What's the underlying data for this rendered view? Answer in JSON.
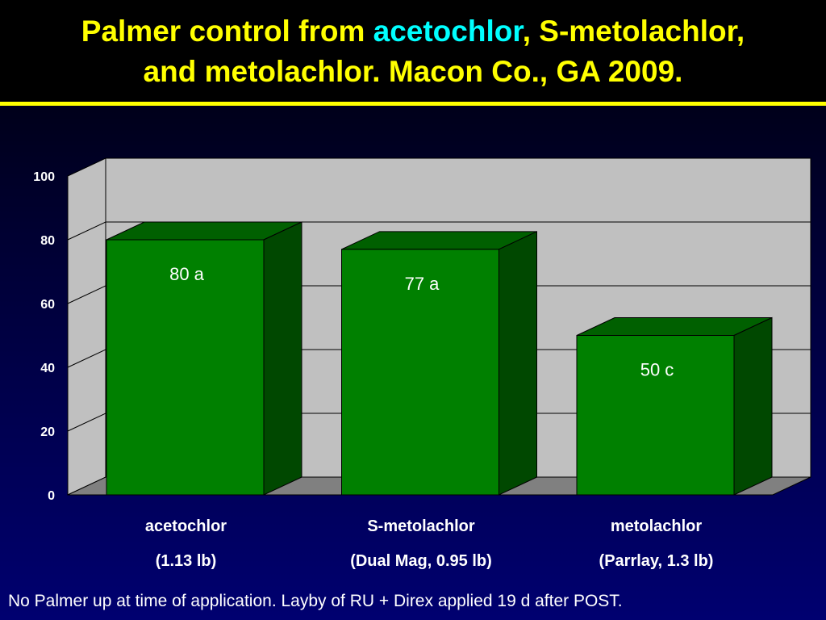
{
  "title": {
    "part1": "Palmer control from ",
    "highlight": "acetochlor",
    "part2": ", S-metolachlor,",
    "line2": "and metolachlor.  Macon Co., GA 2009."
  },
  "colors": {
    "title": "#ffff00",
    "highlight": "#00ffff",
    "bar_front": "#008000",
    "bar_top": "#006000",
    "bar_side": "#004800",
    "wall": "#c0c0c0",
    "floor": "#808080"
  },
  "chart_data": {
    "type": "bar",
    "style": "3d",
    "categories": [
      "acetochlor",
      "S-metolachlor",
      "metolachlor"
    ],
    "category_sublabels": [
      "(1.13 lb)",
      "(Dual Mag, 0.95 lb)",
      "(Parrlay, 1.3 lb)"
    ],
    "values": [
      80,
      77,
      50
    ],
    "data_labels": [
      "80 a",
      "77 a",
      "50 c"
    ],
    "ylim": [
      0,
      100
    ],
    "yticks": [
      "0",
      "20",
      "40",
      "60",
      "80",
      "100"
    ],
    "grid": true,
    "legend": "none"
  },
  "footnote": "No Palmer up at time of application.  Layby of RU + Direx applied 19 d after POST."
}
